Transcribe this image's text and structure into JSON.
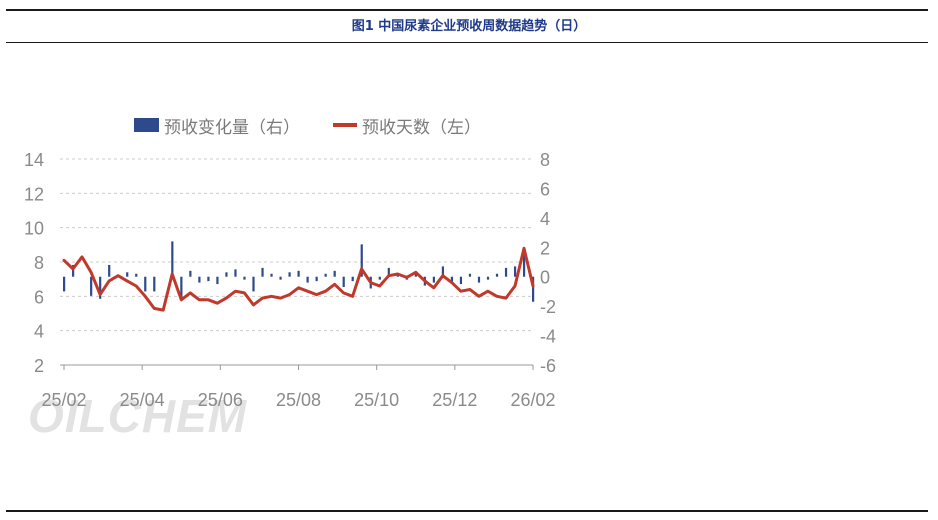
{
  "figure": {
    "title": "图1 中国尿素企业预收周数据趋势（日）"
  },
  "watermark": "OILCHEM",
  "colors": {
    "bar": "#2e4a8c",
    "line": "#c0392b",
    "axis": "#999999",
    "grid": "#cccccc",
    "title": "#1f3a8a"
  },
  "chart_data": {
    "type": "bar+line",
    "x_tick_labels": [
      "25/02",
      "25/04",
      "25/06",
      "25/08",
      "25/10",
      "25/12",
      "26/02"
    ],
    "legend": [
      {
        "label": "预收变化量（右）",
        "kind": "bar"
      },
      {
        "label": "预收天数（左）",
        "kind": "line"
      }
    ],
    "y_left": {
      "min": 2,
      "max": 14,
      "ticks": [
        2,
        4,
        6,
        8,
        10,
        12,
        14
      ]
    },
    "y_right": {
      "min": -6,
      "max": 8,
      "ticks": [
        -6,
        -4,
        -2,
        0,
        2,
        4,
        6,
        8
      ]
    },
    "grid": "horizontal dashed",
    "legend_position": "top-left",
    "weeks": 53,
    "series": [
      {
        "name": "预收天数（左）",
        "type": "line",
        "axis": "left",
        "values": [
          8.1,
          7.6,
          8.3,
          7.4,
          6.1,
          6.9,
          7.2,
          6.9,
          6.6,
          6.0,
          5.3,
          5.2,
          7.3,
          5.8,
          6.2,
          5.8,
          5.8,
          5.6,
          5.9,
          6.3,
          6.2,
          5.5,
          5.9,
          6.0,
          5.9,
          6.1,
          6.5,
          6.3,
          6.1,
          6.3,
          6.7,
          6.2,
          6.0,
          7.6,
          6.8,
          6.6,
          7.2,
          7.3,
          7.1,
          7.4,
          6.9,
          6.5,
          7.2,
          6.8,
          6.3,
          6.4,
          6.0,
          6.3,
          6.0,
          5.9,
          6.6,
          8.8,
          6.6
        ],
        "note_values_approx": true
      },
      {
        "name": "预收变化量（右）",
        "type": "bar",
        "axis": "right",
        "values": [
          -1.0,
          0.8,
          0,
          -1.3,
          -1.5,
          0.8,
          0,
          0.3,
          0.2,
          -1.0,
          -1.0,
          0,
          2.4,
          -1.6,
          0.4,
          -0.4,
          -0.3,
          -0.5,
          0.3,
          0.5,
          -0.2,
          -1.0,
          0.6,
          0.2,
          -0.2,
          0.3,
          0.4,
          -0.4,
          -0.3,
          0.2,
          0.4,
          -0.7,
          -0.3,
          2.2,
          -0.8,
          -0.2,
          0.6,
          0.1,
          -0.2,
          0.3,
          -0.6,
          -0.4,
          0.7,
          -0.4,
          -0.5,
          0.2,
          -0.4,
          -0.2,
          0.2,
          0.6,
          0.7,
          2.0,
          -1.7
        ]
      }
    ]
  }
}
